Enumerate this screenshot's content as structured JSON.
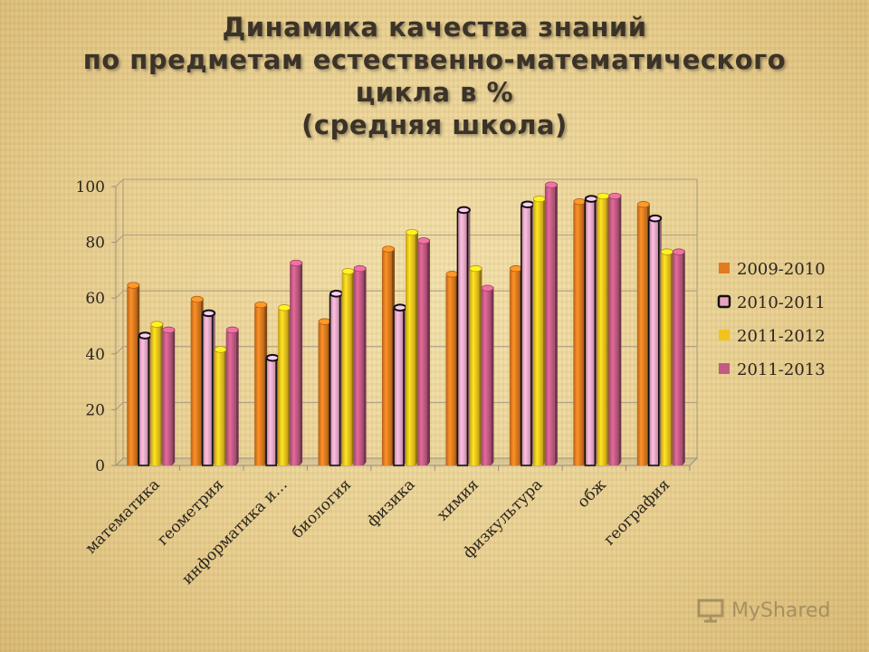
{
  "title_lines": [
    "Динамика качества знаний",
    "по предметам естественно-математического",
    "цикла в %",
    "(средняя школа)"
  ],
  "watermark": "MyShared",
  "chart_data": {
    "type": "bar",
    "categories": [
      "математика",
      "геометрия",
      "информатика и…",
      "биология",
      "физика",
      "химия",
      "физкультура",
      "обж",
      "география"
    ],
    "series": [
      {
        "name": "2009-2010",
        "values": [
          64,
          59,
          57,
          51,
          77,
          68,
          70,
          94,
          93
        ],
        "color": "#e07b1f"
      },
      {
        "name": "2010-2011",
        "values": [
          46,
          54,
          38,
          61,
          56,
          91,
          93,
          95,
          88
        ],
        "color": "#e8a3c0"
      },
      {
        "name": "2011-2012",
        "values": [
          50,
          41,
          56,
          69,
          83,
          70,
          95,
          96,
          76
        ],
        "color": "#f2c31c"
      },
      {
        "name": "2011-2013",
        "values": [
          48,
          48,
          72,
          70,
          80,
          63,
          100,
          96,
          76
        ],
        "color": "#c25a83"
      }
    ],
    "ylim": [
      0,
      100
    ],
    "yticks": [
      0,
      20,
      40,
      60,
      80,
      100
    ],
    "grid": true,
    "legend_position": "right"
  }
}
